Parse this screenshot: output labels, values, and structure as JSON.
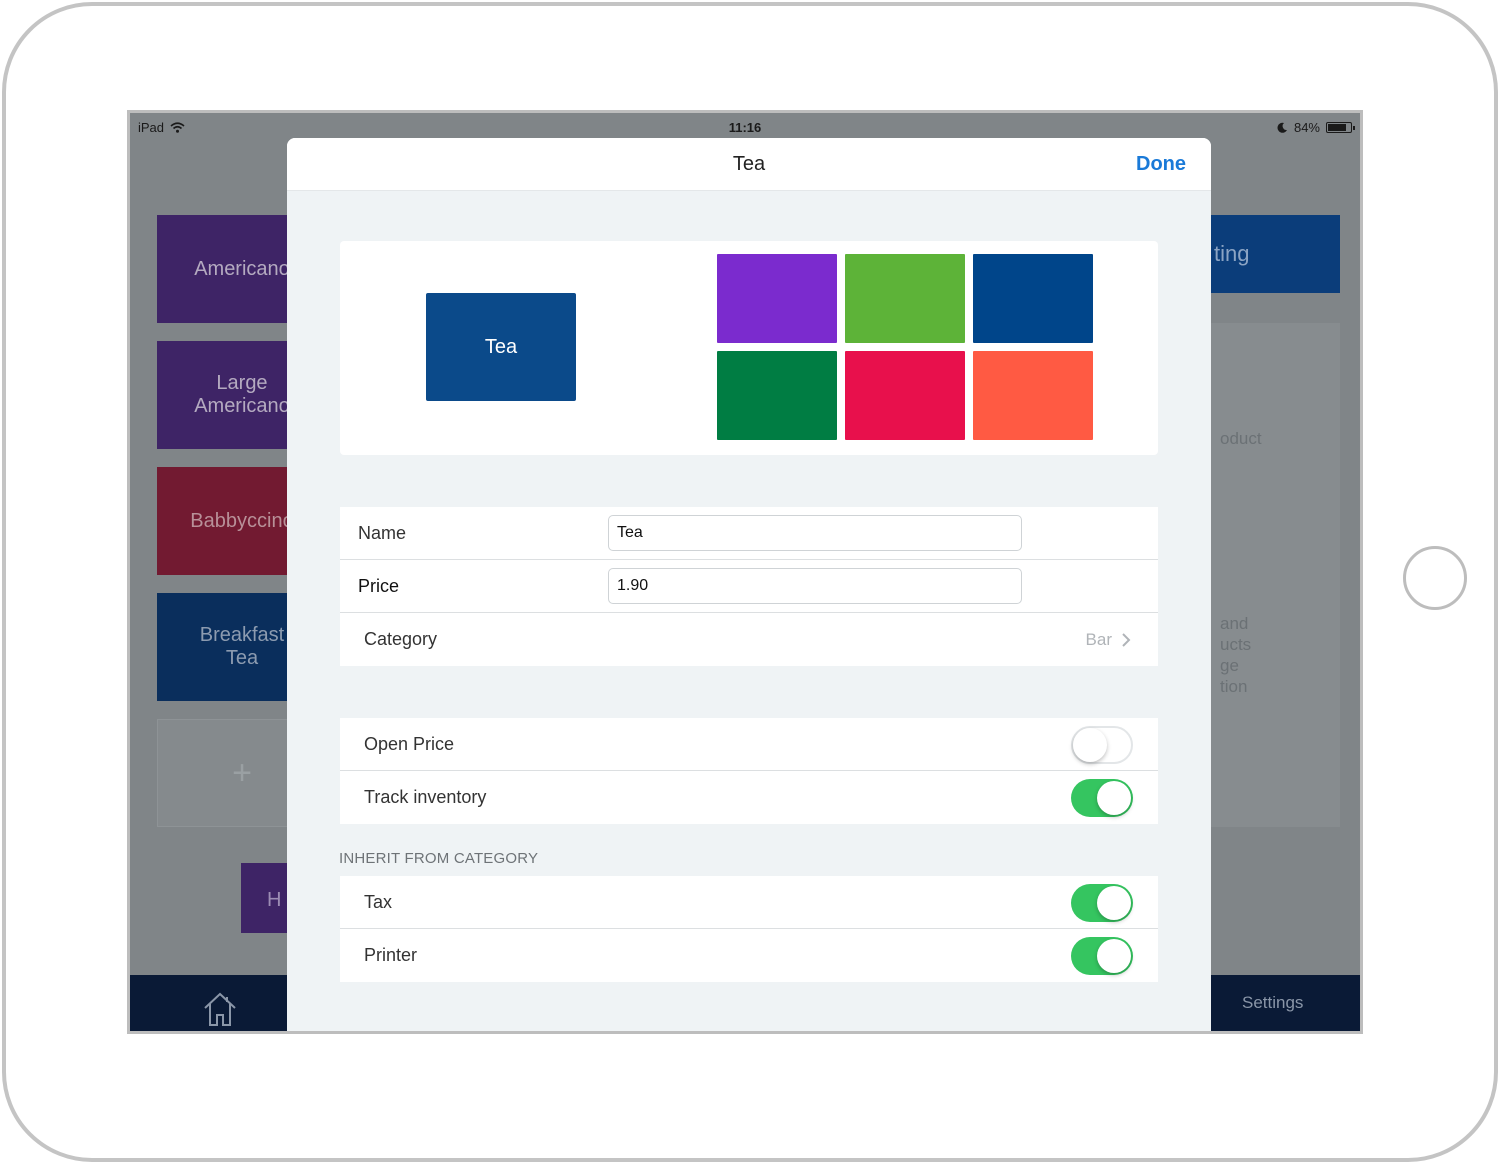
{
  "status_bar": {
    "device": "iPad",
    "time": "11:16",
    "battery": "84%",
    "battery_level": 0.84
  },
  "background": {
    "tiles": [
      {
        "label": "Americano",
        "color": "#3e2466"
      },
      {
        "label": "Large\nAmericano",
        "color": "#3e2466"
      },
      {
        "label": "Babbyccino",
        "color": "#721a31"
      },
      {
        "label": "Breakfast\nTea",
        "color": "#0a2e5c"
      },
      {
        "label": "+"
      }
    ],
    "bottom_tile_label": "H",
    "right_button_label": "ting",
    "right_panel_text_1": "oduct",
    "right_panel_text_2": "and\nucts\nge\ntion",
    "tab_settings_label": "Settings"
  },
  "modal": {
    "title": "Tea",
    "done_label": "Done",
    "preview": {
      "label": "Tea",
      "color": "#0b4a8a"
    },
    "swatches": [
      "#7b2bce",
      "#5db338",
      "#00458a",
      "#007d43",
      "#e8104c",
      "#ff5a43"
    ],
    "fields": {
      "name_label": "Name",
      "name_value": "Tea",
      "price_label": "Price",
      "price_value": "1.90",
      "category_label": "Category",
      "category_value": "Bar"
    },
    "toggles": {
      "open_price_label": "Open Price",
      "open_price_on": false,
      "track_inventory_label": "Track inventory",
      "track_inventory_on": true
    },
    "inherit_header": "INHERIT FROM CATEGORY",
    "inherit": {
      "tax_label": "Tax",
      "tax_on": true,
      "printer_label": "Printer",
      "printer_on": true
    }
  },
  "colors": {
    "accent": "#1a7ad8",
    "toggle_on": "#35c560"
  }
}
